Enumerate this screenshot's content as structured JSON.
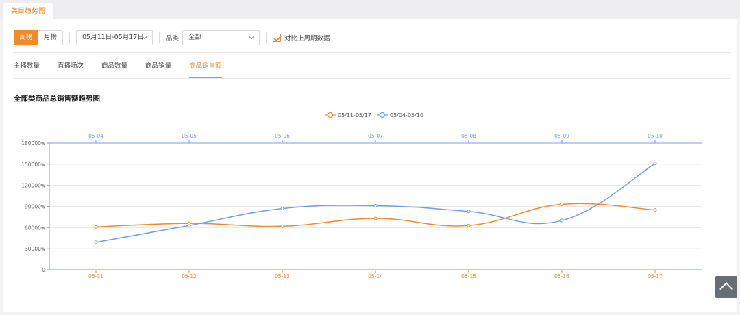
{
  "top_tab": {
    "label": "类目趋势图"
  },
  "toolbar": {
    "period_options": [
      "周榜",
      "月榜"
    ],
    "date_range": "05月11日-05月17日",
    "category_label": "品类",
    "category_value": "全部",
    "compare_label": "对比上周期数据",
    "compare_checked": true
  },
  "metric_tabs": [
    "主播数量",
    "直播场次",
    "商品数量",
    "商品销量",
    "商品销售额"
  ],
  "active_metric": "商品销售额",
  "colors": {
    "accent": "#f08a2c",
    "current_series": "#f08a2c",
    "previous_series": "#6f9ded"
  },
  "chart_data": {
    "type": "line",
    "title": "全部类商品总销售额趋势图",
    "legend_position": "top-center",
    "grid": true,
    "smooth": true,
    "ylim": [
      0,
      180000
    ],
    "y_ticks": [
      0,
      30000,
      60000,
      90000,
      120000,
      150000,
      180000
    ],
    "y_tick_labels": [
      "0",
      "30000w",
      "60000w",
      "90000w",
      "120000w",
      "150000w",
      "180000w"
    ],
    "x_bottom": [
      "05-11",
      "05-12",
      "05-13",
      "05-14",
      "05-15",
      "05-16",
      "05-17"
    ],
    "x_top": [
      "05-04",
      "05-05",
      "05-06",
      "05-07",
      "05-08",
      "05-09",
      "05-10"
    ],
    "series": [
      {
        "name": "05/11-05/17",
        "axis": "bottom",
        "values": [
          61000,
          66000,
          62000,
          73000,
          63000,
          93000,
          85000
        ]
      },
      {
        "name": "05/04-05/10",
        "axis": "top",
        "values": [
          39000,
          63000,
          87000,
          91000,
          83000,
          70000,
          151000
        ]
      }
    ]
  }
}
